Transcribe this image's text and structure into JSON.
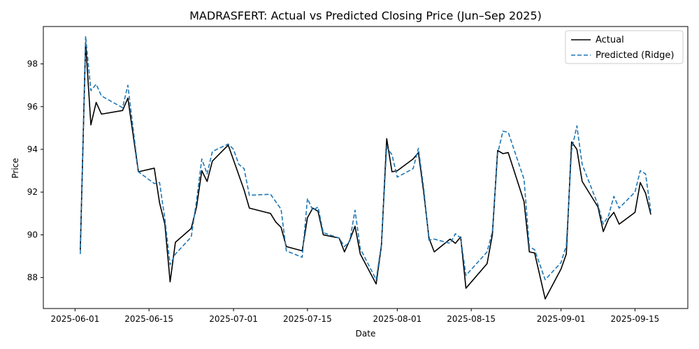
{
  "chart_data": {
    "type": "line",
    "title": "MADRASFERT: Actual vs Predicted Closing Price (Jun–Sep 2025)",
    "xlabel": "Date",
    "ylabel": "Price",
    "x_type": "date",
    "xlim": [
      "2025-05-26",
      "2025-09-25"
    ],
    "ylim": [
      86.55,
      99.75
    ],
    "x_ticks": [
      "2025-06-01",
      "2025-06-15",
      "2025-07-01",
      "2025-07-15",
      "2025-08-01",
      "2025-08-15",
      "2025-09-01",
      "2025-09-15"
    ],
    "y_ticks": [
      88,
      90,
      92,
      94,
      96,
      98
    ],
    "legend_position": "top-right",
    "grid": false,
    "series": [
      {
        "name": "Actual",
        "color": "#000000",
        "dash": "solid",
        "points": [
          [
            "2025-06-02",
            89.3
          ],
          [
            "2025-06-03",
            99.0
          ],
          [
            "2025-06-04",
            95.15
          ],
          [
            "2025-06-05",
            96.2
          ],
          [
            "2025-06-06",
            95.65
          ],
          [
            "2025-06-10",
            95.82
          ],
          [
            "2025-06-11",
            96.4
          ],
          [
            "2025-06-13",
            92.95
          ],
          [
            "2025-06-16",
            93.12
          ],
          [
            "2025-06-17",
            91.5
          ],
          [
            "2025-06-18",
            90.5
          ],
          [
            "2025-06-19",
            87.8
          ],
          [
            "2025-06-20",
            89.65
          ],
          [
            "2025-06-23",
            90.3
          ],
          [
            "2025-06-24",
            91.3
          ],
          [
            "2025-06-25",
            93.0
          ],
          [
            "2025-06-26",
            92.5
          ],
          [
            "2025-06-27",
            93.45
          ],
          [
            "2025-06-30",
            94.2
          ],
          [
            "2025-07-01",
            93.5
          ],
          [
            "2025-07-03",
            92.1
          ],
          [
            "2025-07-04",
            91.25
          ],
          [
            "2025-07-08",
            91.0
          ],
          [
            "2025-07-09",
            90.6
          ],
          [
            "2025-07-10",
            90.35
          ],
          [
            "2025-07-11",
            89.45
          ],
          [
            "2025-07-14",
            89.25
          ],
          [
            "2025-07-15",
            90.8
          ],
          [
            "2025-07-16",
            91.25
          ],
          [
            "2025-07-17",
            91.1
          ],
          [
            "2025-07-18",
            90.0
          ],
          [
            "2025-07-21",
            89.85
          ],
          [
            "2025-07-22",
            89.2
          ],
          [
            "2025-07-23",
            89.75
          ],
          [
            "2025-07-24",
            90.4
          ],
          [
            "2025-07-25",
            89.1
          ],
          [
            "2025-07-28",
            87.7
          ],
          [
            "2025-07-29",
            89.5
          ],
          [
            "2025-07-30",
            94.5
          ],
          [
            "2025-07-31",
            92.95
          ],
          [
            "2025-08-01",
            93.0
          ],
          [
            "2025-08-04",
            93.55
          ],
          [
            "2025-08-05",
            93.85
          ],
          [
            "2025-08-06",
            92.0
          ],
          [
            "2025-08-07",
            89.85
          ],
          [
            "2025-08-08",
            89.2
          ],
          [
            "2025-08-11",
            89.8
          ],
          [
            "2025-08-12",
            89.6
          ],
          [
            "2025-08-13",
            89.9
          ],
          [
            "2025-08-14",
            87.5
          ],
          [
            "2025-08-18",
            88.65
          ],
          [
            "2025-08-19",
            90.0
          ],
          [
            "2025-08-20",
            93.95
          ],
          [
            "2025-08-21",
            93.8
          ],
          [
            "2025-08-22",
            93.85
          ],
          [
            "2025-08-25",
            91.55
          ],
          [
            "2025-08-26",
            89.2
          ],
          [
            "2025-08-27",
            89.15
          ],
          [
            "2025-08-29",
            87.0
          ],
          [
            "2025-09-01",
            88.4
          ],
          [
            "2025-09-02",
            89.1
          ],
          [
            "2025-09-03",
            94.35
          ],
          [
            "2025-09-04",
            94.0
          ],
          [
            "2025-09-05",
            92.5
          ],
          [
            "2025-09-08",
            91.3
          ],
          [
            "2025-09-09",
            90.15
          ],
          [
            "2025-09-10",
            90.75
          ],
          [
            "2025-09-11",
            91.05
          ],
          [
            "2025-09-12",
            90.5
          ],
          [
            "2025-09-15",
            91.05
          ],
          [
            "2025-09-16",
            92.45
          ],
          [
            "2025-09-17",
            91.95
          ],
          [
            "2025-09-18",
            90.95
          ]
        ]
      },
      {
        "name": "Predicted (Ridge)",
        "color": "#1f77b4",
        "dash": "dashed",
        "points": [
          [
            "2025-06-02",
            89.1
          ],
          [
            "2025-06-03",
            99.3
          ],
          [
            "2025-06-04",
            96.75
          ],
          [
            "2025-06-05",
            97.05
          ],
          [
            "2025-06-06",
            96.5
          ],
          [
            "2025-06-10",
            95.95
          ],
          [
            "2025-06-11",
            97.0
          ],
          [
            "2025-06-13",
            92.95
          ],
          [
            "2025-06-16",
            92.4
          ],
          [
            "2025-06-17",
            92.45
          ],
          [
            "2025-06-18",
            90.75
          ],
          [
            "2025-06-19",
            88.6
          ],
          [
            "2025-06-20",
            89.1
          ],
          [
            "2025-06-23",
            89.9
          ],
          [
            "2025-06-24",
            91.6
          ],
          [
            "2025-06-25",
            93.55
          ],
          [
            "2025-06-26",
            92.85
          ],
          [
            "2025-06-27",
            93.9
          ],
          [
            "2025-06-30",
            94.25
          ],
          [
            "2025-07-01",
            94.0
          ],
          [
            "2025-07-02",
            93.3
          ],
          [
            "2025-07-03",
            93.1
          ],
          [
            "2025-07-04",
            91.85
          ],
          [
            "2025-07-08",
            91.9
          ],
          [
            "2025-07-09",
            91.55
          ],
          [
            "2025-07-10",
            91.2
          ],
          [
            "2025-07-11",
            89.25
          ],
          [
            "2025-07-14",
            88.95
          ],
          [
            "2025-07-15",
            91.7
          ],
          [
            "2025-07-16",
            91.15
          ],
          [
            "2025-07-17",
            91.3
          ],
          [
            "2025-07-18",
            90.1
          ],
          [
            "2025-07-21",
            89.85
          ],
          [
            "2025-07-22",
            89.45
          ],
          [
            "2025-07-23",
            89.7
          ],
          [
            "2025-07-24",
            91.15
          ],
          [
            "2025-07-25",
            89.35
          ],
          [
            "2025-07-28",
            87.9
          ],
          [
            "2025-07-29",
            89.55
          ],
          [
            "2025-07-30",
            94.1
          ],
          [
            "2025-07-31",
            93.75
          ],
          [
            "2025-08-01",
            92.7
          ],
          [
            "2025-08-04",
            93.1
          ],
          [
            "2025-08-05",
            94.05
          ],
          [
            "2025-08-06",
            92.2
          ],
          [
            "2025-08-07",
            89.75
          ],
          [
            "2025-08-08",
            89.8
          ],
          [
            "2025-08-11",
            89.6
          ],
          [
            "2025-08-12",
            90.05
          ],
          [
            "2025-08-13",
            89.85
          ],
          [
            "2025-08-14",
            88.1
          ],
          [
            "2025-08-18",
            89.2
          ],
          [
            "2025-08-19",
            90.15
          ],
          [
            "2025-08-20",
            93.8
          ],
          [
            "2025-08-21",
            94.85
          ],
          [
            "2025-08-22",
            94.8
          ],
          [
            "2025-08-25",
            92.6
          ],
          [
            "2025-08-26",
            89.45
          ],
          [
            "2025-08-27",
            89.3
          ],
          [
            "2025-08-29",
            87.9
          ],
          [
            "2025-09-01",
            88.7
          ],
          [
            "2025-09-02",
            89.5
          ],
          [
            "2025-09-03",
            93.95
          ],
          [
            "2025-09-04",
            95.1
          ],
          [
            "2025-09-05",
            93.3
          ],
          [
            "2025-09-08",
            91.4
          ],
          [
            "2025-09-09",
            90.5
          ],
          [
            "2025-09-10",
            90.9
          ],
          [
            "2025-09-11",
            91.8
          ],
          [
            "2025-09-12",
            91.25
          ],
          [
            "2025-09-15",
            92.0
          ],
          [
            "2025-09-16",
            93.0
          ],
          [
            "2025-09-17",
            92.85
          ],
          [
            "2025-09-18",
            91.1
          ]
        ]
      }
    ]
  }
}
